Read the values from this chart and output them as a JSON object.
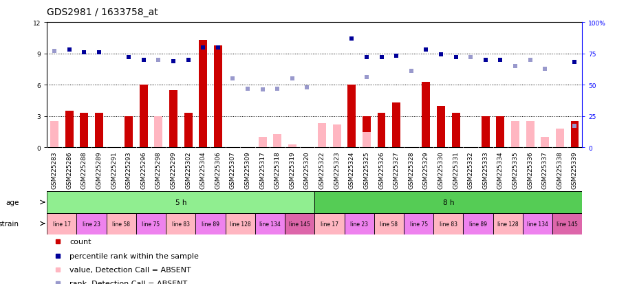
{
  "title": "GDS2981 / 1633758_at",
  "samples": [
    "GSM225283",
    "GSM225286",
    "GSM225288",
    "GSM225289",
    "GSM225291",
    "GSM225293",
    "GSM225296",
    "GSM225298",
    "GSM225299",
    "GSM225302",
    "GSM225304",
    "GSM225306",
    "GSM225307",
    "GSM225309",
    "GSM225317",
    "GSM225318",
    "GSM225319",
    "GSM225320",
    "GSM225322",
    "GSM225323",
    "GSM225324",
    "GSM225325",
    "GSM225326",
    "GSM225327",
    "GSM225328",
    "GSM225329",
    "GSM225330",
    "GSM225331",
    "GSM225332",
    "GSM225333",
    "GSM225334",
    "GSM225335",
    "GSM225336",
    "GSM225337",
    "GSM225338",
    "GSM225339"
  ],
  "count_present": [
    null,
    3.5,
    3.3,
    3.3,
    null,
    3.0,
    6.0,
    null,
    5.5,
    3.3,
    10.3,
    9.8,
    null,
    null,
    null,
    null,
    null,
    null,
    null,
    null,
    6.0,
    3.0,
    3.3,
    4.3,
    null,
    6.3,
    4.0,
    3.3,
    null,
    3.0,
    3.0,
    null,
    null,
    null,
    null,
    2.5
  ],
  "count_absent": [
    2.5,
    null,
    null,
    null,
    null,
    null,
    null,
    3.0,
    null,
    null,
    null,
    null,
    null,
    null,
    1.0,
    1.3,
    0.3,
    null,
    2.3,
    2.2,
    null,
    1.5,
    null,
    null,
    null,
    null,
    null,
    null,
    null,
    null,
    null,
    2.5,
    2.5,
    1.0,
    1.8,
    null
  ],
  "rank_present": [
    null,
    78,
    76,
    76,
    null,
    72,
    70,
    null,
    69,
    70,
    80,
    80,
    null,
    null,
    null,
    null,
    null,
    null,
    null,
    null,
    87,
    72,
    72,
    73,
    null,
    78,
    74,
    72,
    null,
    70,
    70,
    null,
    null,
    null,
    null,
    68
  ],
  "rank_absent": [
    77,
    null,
    null,
    null,
    null,
    null,
    null,
    70,
    null,
    null,
    null,
    null,
    55,
    47,
    46,
    47,
    55,
    48,
    null,
    null,
    null,
    56,
    null,
    null,
    61,
    null,
    null,
    null,
    72,
    null,
    null,
    65,
    70,
    63,
    null,
    17
  ],
  "age_groups": [
    {
      "label": "5 h",
      "start": 0,
      "end": 18,
      "color": "#90EE90"
    },
    {
      "label": "8 h",
      "start": 18,
      "end": 36,
      "color": "#55CC55"
    }
  ],
  "strain_groups": [
    {
      "label": "line 17",
      "start": 0,
      "end": 2,
      "color": "#FFB6C1"
    },
    {
      "label": "line 23",
      "start": 2,
      "end": 4,
      "color": "#EE82EE"
    },
    {
      "label": "line 58",
      "start": 4,
      "end": 6,
      "color": "#FFB6C1"
    },
    {
      "label": "line 75",
      "start": 6,
      "end": 8,
      "color": "#EE82EE"
    },
    {
      "label": "line 83",
      "start": 8,
      "end": 10,
      "color": "#FFB6C1"
    },
    {
      "label": "line 89",
      "start": 10,
      "end": 12,
      "color": "#EE82EE"
    },
    {
      "label": "line 128",
      "start": 12,
      "end": 14,
      "color": "#FFB6C1"
    },
    {
      "label": "line 134",
      "start": 14,
      "end": 16,
      "color": "#EE82EE"
    },
    {
      "label": "line 145",
      "start": 16,
      "end": 18,
      "color": "#DD66AA"
    },
    {
      "label": "line 17",
      "start": 18,
      "end": 20,
      "color": "#FFB6C1"
    },
    {
      "label": "line 23",
      "start": 20,
      "end": 22,
      "color": "#EE82EE"
    },
    {
      "label": "line 58",
      "start": 22,
      "end": 24,
      "color": "#FFB6C1"
    },
    {
      "label": "line 75",
      "start": 24,
      "end": 26,
      "color": "#EE82EE"
    },
    {
      "label": "line 83",
      "start": 26,
      "end": 28,
      "color": "#FFB6C1"
    },
    {
      "label": "line 89",
      "start": 28,
      "end": 30,
      "color": "#EE82EE"
    },
    {
      "label": "line 128",
      "start": 30,
      "end": 32,
      "color": "#FFB6C1"
    },
    {
      "label": "line 134",
      "start": 32,
      "end": 34,
      "color": "#EE82EE"
    },
    {
      "label": "line 145",
      "start": 34,
      "end": 36,
      "color": "#DD66AA"
    }
  ],
  "ylim_left": [
    0,
    12
  ],
  "ylim_right": [
    0,
    100
  ],
  "yticks_left": [
    0,
    3,
    6,
    9,
    12
  ],
  "yticks_right": [
    0,
    25,
    50,
    75,
    100
  ],
  "bar_color_present": "#CC0000",
  "bar_color_absent": "#FFB6C1",
  "rank_color_present": "#000099",
  "rank_color_absent": "#9999CC",
  "bg_color": "#FFFFFF",
  "title_fontsize": 10,
  "tick_fontsize": 6.5,
  "annot_fontsize": 7.5,
  "legend_fontsize": 8
}
